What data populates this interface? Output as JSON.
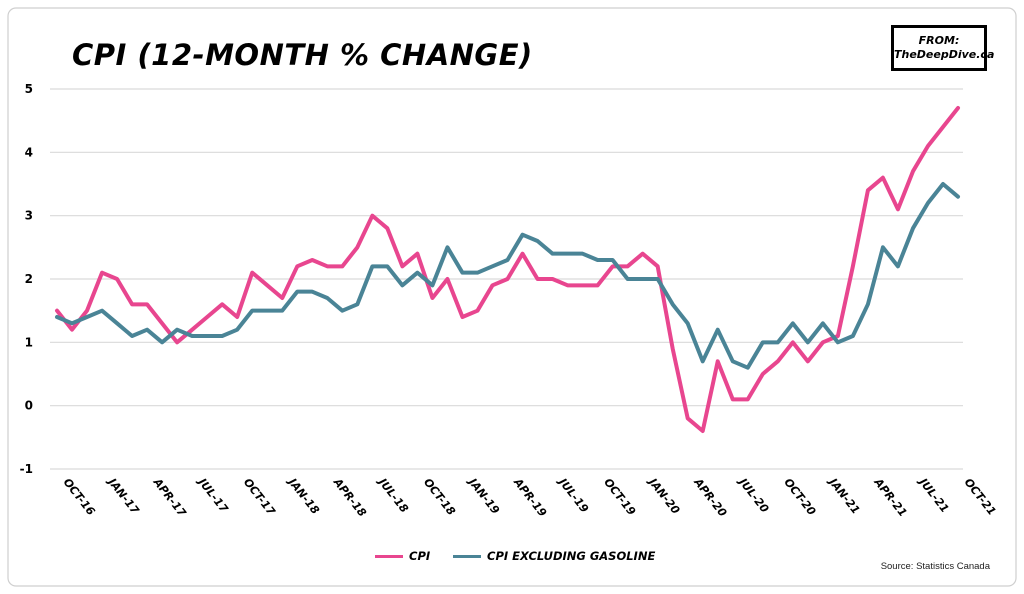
{
  "header": {
    "title": "CPI (12-MONTH % CHANGE)",
    "from_label": "FROM:",
    "from_source": "TheDeepDive.ca"
  },
  "footer": {
    "credit": "Source: Statistics Canada"
  },
  "colors": {
    "cpi": "#e8468f",
    "cpi_ex_gas": "#4a8496",
    "grid": "#d9d9d9",
    "border": "#cfcfcf"
  },
  "chart_data": {
    "type": "line",
    "title": "CPI (12-MONTH % CHANGE)",
    "xlabel": "",
    "ylabel": "",
    "ylim": [
      -1,
      5
    ],
    "yticks": [
      -1,
      0,
      1,
      2,
      3,
      4,
      5
    ],
    "grid": true,
    "legend_position": "bottom",
    "x_tick_labels": [
      "Oct-16",
      "Jan-17",
      "Apr-17",
      "Jul-17",
      "Oct-17",
      "Jan-18",
      "Apr-18",
      "Jul-18",
      "Oct-18",
      "Jan-19",
      "Apr-19",
      "Jul-19",
      "Oct-19",
      "Jan-20",
      "Apr-20",
      "Jul-20",
      "Oct-20",
      "Jan-21",
      "Apr-21",
      "Jul-21",
      "Oct-21"
    ],
    "x": [
      "Oct-16",
      "Nov-16",
      "Dec-16",
      "Jan-17",
      "Feb-17",
      "Mar-17",
      "Apr-17",
      "May-17",
      "Jun-17",
      "Jul-17",
      "Aug-17",
      "Sep-17",
      "Oct-17",
      "Nov-17",
      "Dec-17",
      "Jan-18",
      "Feb-18",
      "Mar-18",
      "Apr-18",
      "May-18",
      "Jun-18",
      "Jul-18",
      "Aug-18",
      "Sep-18",
      "Oct-18",
      "Nov-18",
      "Dec-18",
      "Jan-19",
      "Feb-19",
      "Mar-19",
      "Apr-19",
      "May-19",
      "Jun-19",
      "Jul-19",
      "Aug-19",
      "Sep-19",
      "Oct-19",
      "Nov-19",
      "Dec-19",
      "Jan-20",
      "Feb-20",
      "Mar-20",
      "Apr-20",
      "May-20",
      "Jun-20",
      "Jul-20",
      "Aug-20",
      "Sep-20",
      "Oct-20",
      "Nov-20",
      "Dec-20",
      "Jan-21",
      "Feb-21",
      "Mar-21",
      "Apr-21",
      "May-21",
      "Jun-21",
      "Jul-21",
      "Aug-21",
      "Sep-21",
      "Oct-21"
    ],
    "series": [
      {
        "name": "CPI",
        "color": "#e8468f",
        "values": [
          1.5,
          1.2,
          1.5,
          2.1,
          2.0,
          1.6,
          1.6,
          1.3,
          1.0,
          1.2,
          1.4,
          1.6,
          1.4,
          2.1,
          1.9,
          1.7,
          2.2,
          2.3,
          2.2,
          2.2,
          2.5,
          3.0,
          2.8,
          2.2,
          2.4,
          1.7,
          2.0,
          1.4,
          1.5,
          1.9,
          2.0,
          2.4,
          2.0,
          2.0,
          1.9,
          1.9,
          1.9,
          2.2,
          2.2,
          2.4,
          2.2,
          0.9,
          -0.2,
          -0.4,
          0.7,
          0.1,
          0.1,
          0.5,
          0.7,
          1.0,
          0.7,
          1.0,
          1.1,
          2.2,
          3.4,
          3.6,
          3.1,
          3.7,
          4.1,
          4.4,
          4.7
        ]
      },
      {
        "name": "CPI excluding gasoline",
        "color": "#4a8496",
        "values": [
          1.4,
          1.3,
          1.4,
          1.5,
          1.3,
          1.1,
          1.2,
          1.0,
          1.2,
          1.1,
          1.1,
          1.1,
          1.2,
          1.5,
          1.5,
          1.5,
          1.8,
          1.8,
          1.7,
          1.5,
          1.6,
          2.2,
          2.2,
          1.9,
          2.1,
          1.9,
          2.5,
          2.1,
          2.1,
          2.2,
          2.3,
          2.7,
          2.6,
          2.4,
          2.4,
          2.4,
          2.3,
          2.3,
          2.0,
          2.0,
          2.0,
          1.6,
          1.3,
          0.7,
          1.2,
          0.7,
          0.6,
          1.0,
          1.0,
          1.3,
          1.0,
          1.3,
          1.0,
          1.1,
          1.6,
          2.5,
          2.2,
          2.8,
          3.2,
          3.5,
          3.3
        ]
      }
    ]
  }
}
